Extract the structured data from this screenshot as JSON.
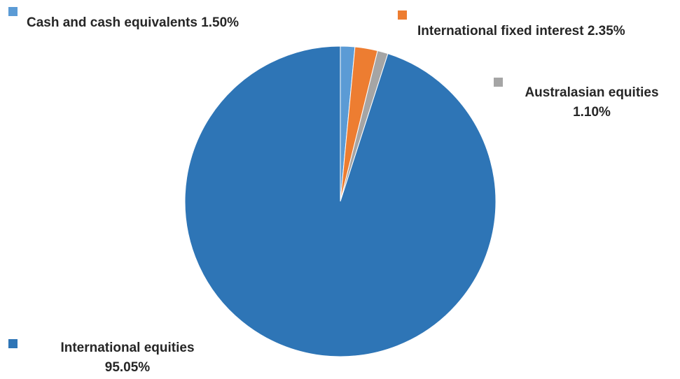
{
  "chart_data": {
    "type": "pie",
    "slices": [
      {
        "label": "Cash and cash equivalents",
        "value": 1.5,
        "value_text": "1.50%",
        "color": "#5B9BD5"
      },
      {
        "label": "International  fixed interest",
        "value": 2.35,
        "value_text": "2.35%",
        "color": "#ED7D31"
      },
      {
        "label": "Australasian  equities",
        "value": 1.1,
        "value_text": "1.10%",
        "color": "#A5A5A5"
      },
      {
        "label": "International  equities",
        "value": 95.05,
        "value_text": "95.05%",
        "color": "#2E75B6"
      }
    ],
    "start_angle": "12 o'clock",
    "direction": "clockwise",
    "legend": "none",
    "data_labels": "outside with color markers"
  }
}
